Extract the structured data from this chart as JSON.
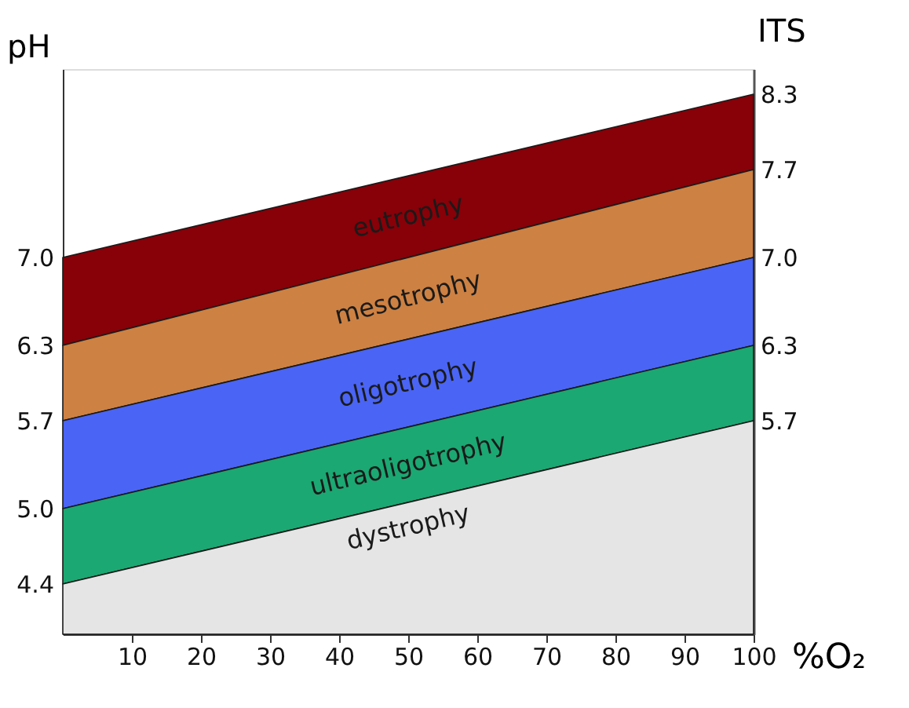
{
  "chart_data": {
    "type": "area",
    "xlabel": "%O₂",
    "ylabel": "pH",
    "y2label": "ITS",
    "x": [
      0,
      100
    ],
    "xlim": [
      0,
      100
    ],
    "xticks": [
      10,
      20,
      30,
      40,
      50,
      60,
      70,
      80,
      90,
      100
    ],
    "ylim": [
      4.0,
      8.5
    ],
    "yticks": [
      4.4,
      {
        "value": 5,
        "label": "5.0"
      },
      5.7,
      6.3,
      {
        "value": 7,
        "label": "7.0"
      }
    ],
    "y2lim": [
      4.0,
      8.5
    ],
    "y2ticks": [
      5.7,
      6.3,
      {
        "value": 7,
        "label": "7.0"
      },
      7.7,
      8.3
    ],
    "grid": false,
    "series": [
      {
        "name": "eutrophy",
        "color": "#880008",
        "values": [
          7.0,
          8.3
        ]
      },
      {
        "name": "mesotrophy",
        "color": "#cd8142",
        "values": [
          6.3,
          7.7
        ]
      },
      {
        "name": "oligotrophy",
        "color": "#4a64f5",
        "values": [
          5.7,
          7.0
        ]
      },
      {
        "name": "ultraoligotrophy",
        "color": "#1ba872",
        "values": [
          5.0,
          6.3
        ]
      },
      {
        "name": "dystrophy",
        "color": "#e5e5e5",
        "values": [
          4.4,
          5.7
        ]
      }
    ]
  }
}
